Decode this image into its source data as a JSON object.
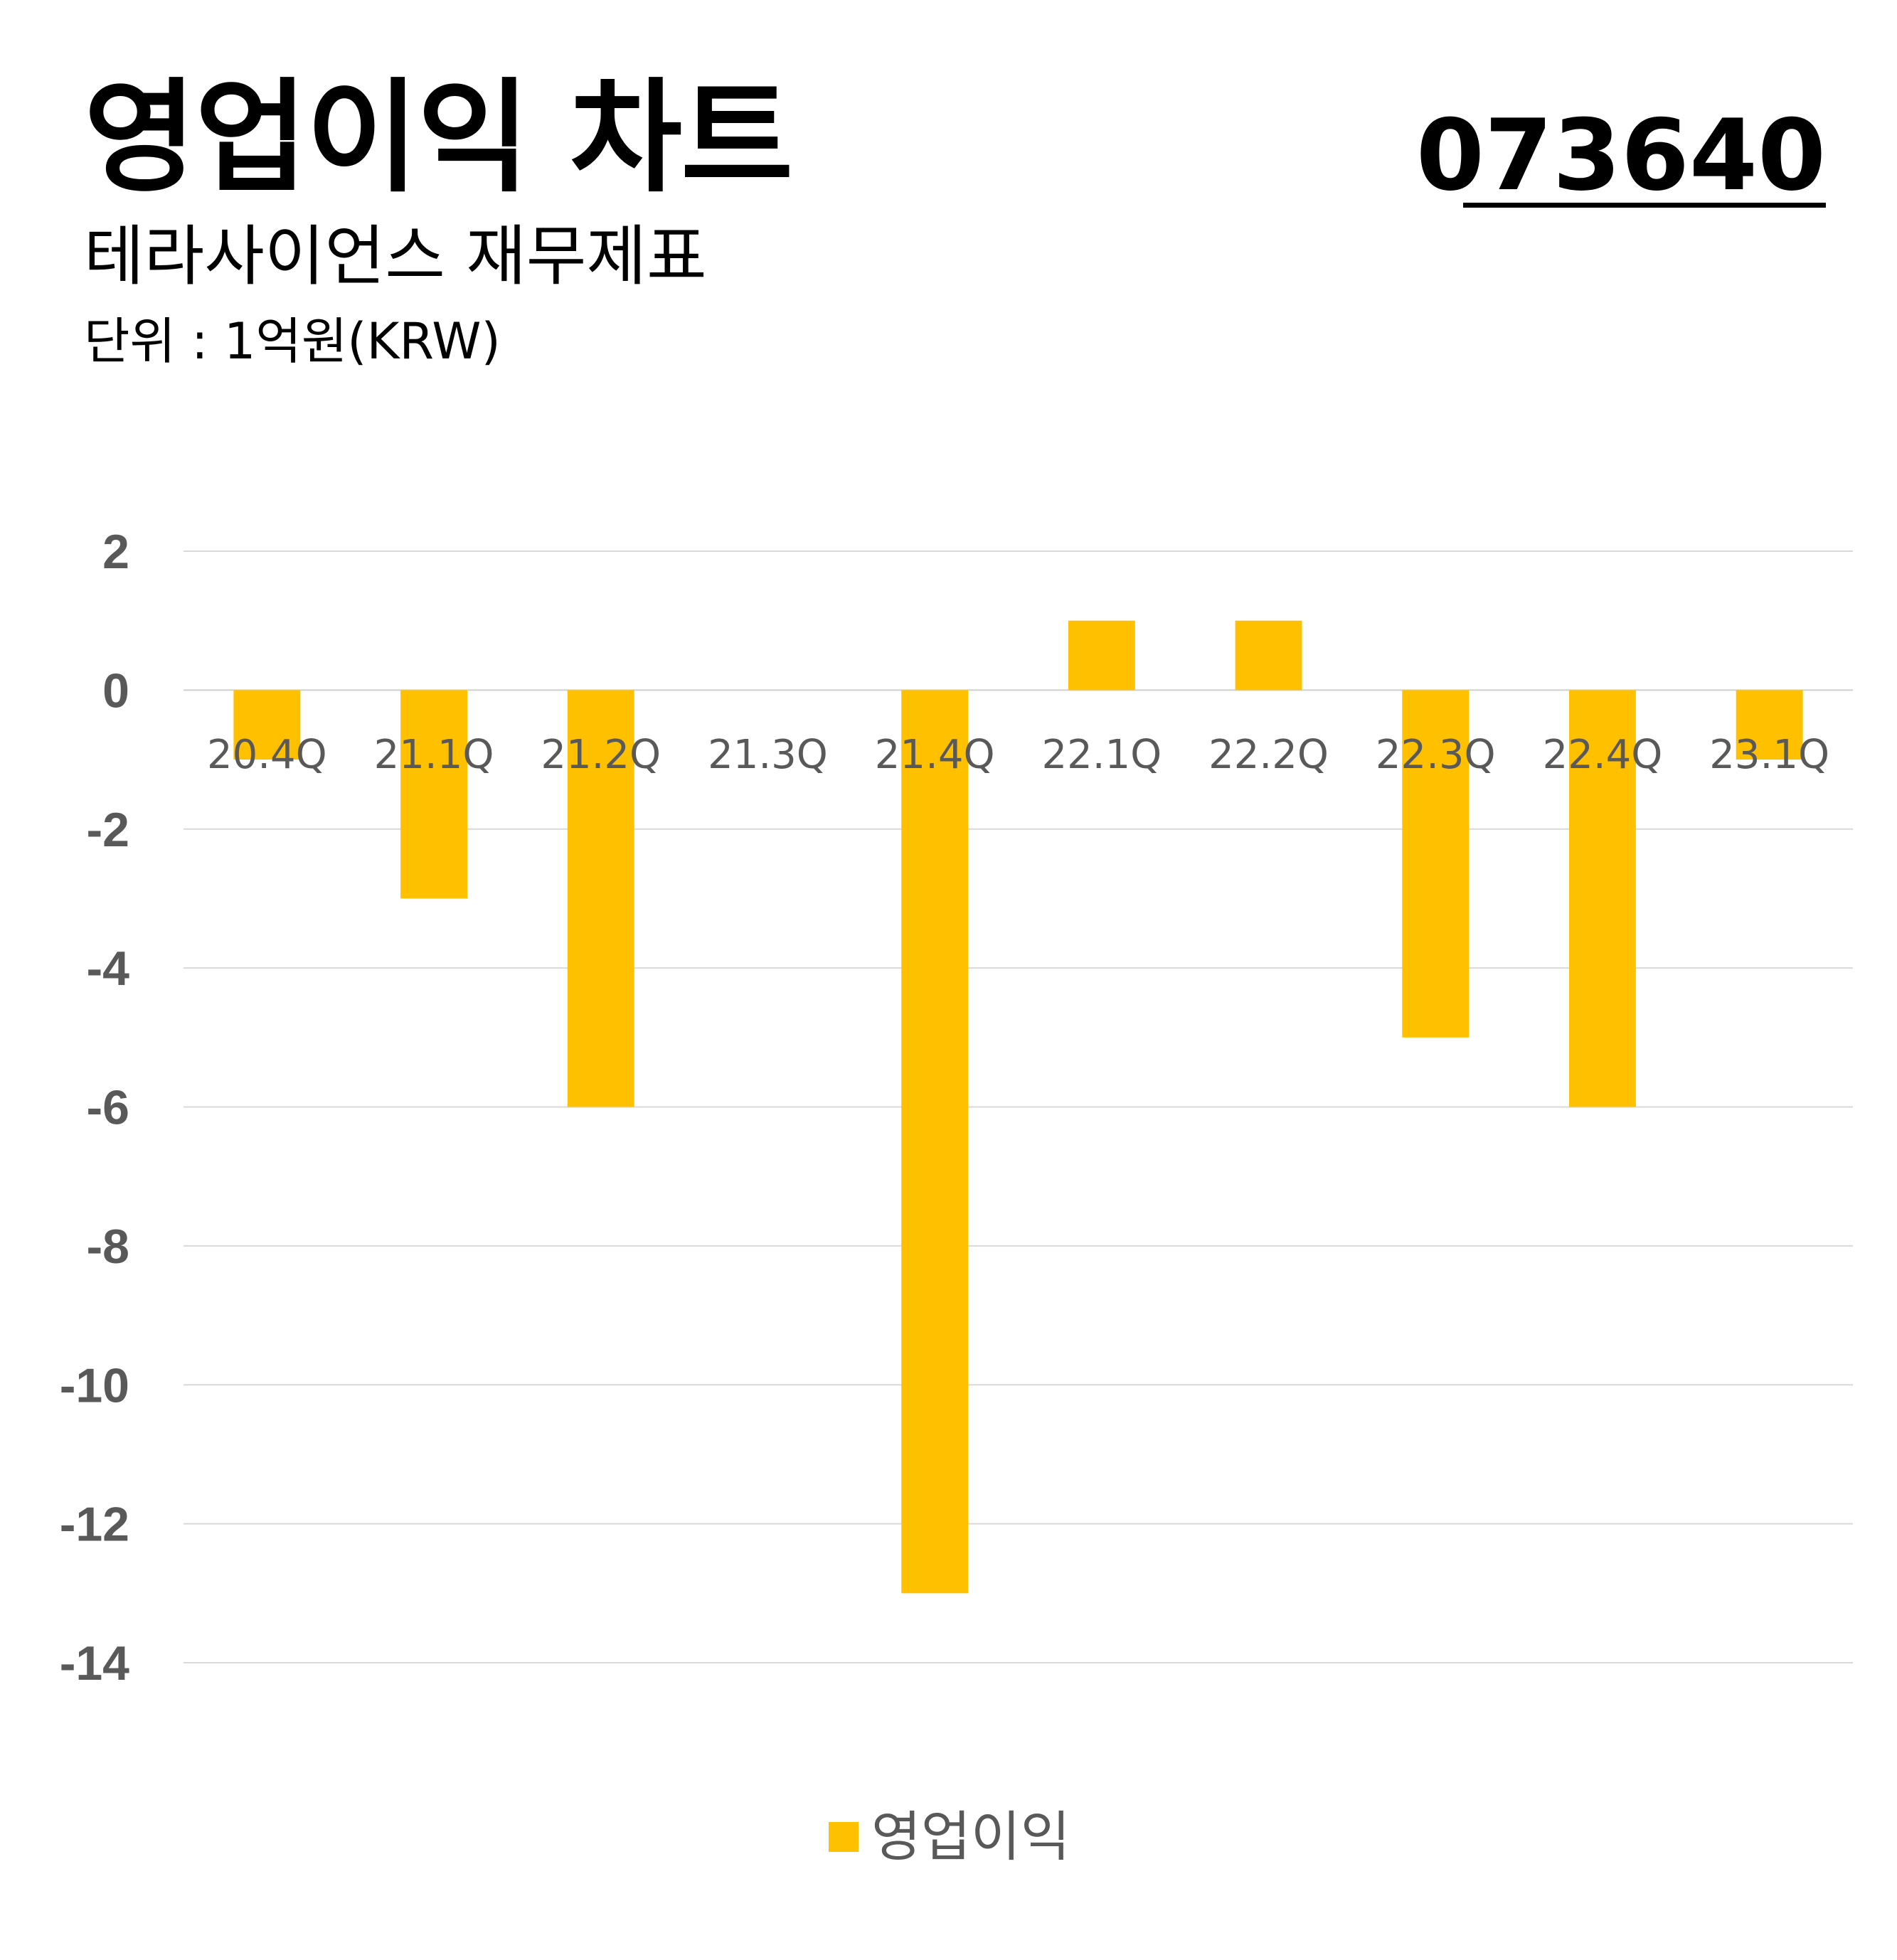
{
  "header": {
    "title": "영업이익 차트",
    "stock_code": "073640",
    "subtitle": "테라사이언스 재무제표",
    "unit": "단위 : 1억원(KRW)"
  },
  "chart_data": {
    "type": "bar",
    "categories": [
      "20.4Q",
      "21.1Q",
      "21.2Q",
      "21.3Q",
      "21.4Q",
      "22.1Q",
      "22.2Q",
      "22.3Q",
      "22.4Q",
      "23.1Q"
    ],
    "series": [
      {
        "name": "영업이익",
        "values": [
          -1,
          -3,
          -6,
          0,
          -13,
          1,
          1,
          -5,
          -6,
          -1
        ],
        "color": "#FFC000"
      }
    ],
    "ylim": [
      -14,
      2
    ],
    "yticks": [
      2,
      0,
      -2,
      -4,
      -6,
      -8,
      -10,
      -12,
      -14
    ],
    "grid": true,
    "legend_position": "bottom"
  }
}
